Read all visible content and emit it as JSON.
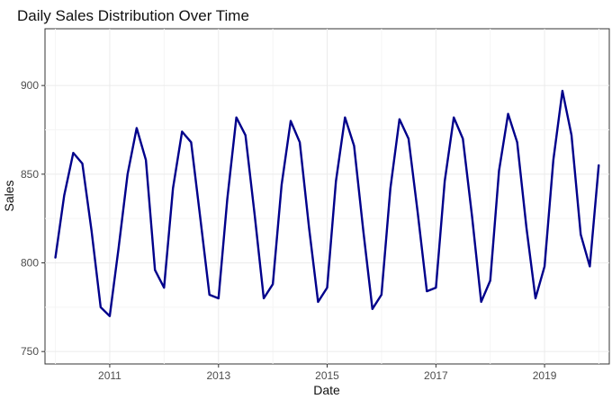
{
  "chart_data": {
    "type": "line",
    "title": "Daily Sales Distribution Over Time",
    "xlabel": "Date",
    "ylabel": "Sales",
    "x_ticks": [
      "2011",
      "2013",
      "2015",
      "2017",
      "2019"
    ],
    "y_ticks": [
      750,
      800,
      850,
      900
    ],
    "xlim": [
      "2009-10-23",
      "2020-03-11"
    ],
    "ylim": [
      743,
      932
    ],
    "grid": true,
    "color": "#00008b",
    "series": [
      {
        "x": [
          "2010-01-01",
          "2010-03-01",
          "2010-05-01",
          "2010-07-01",
          "2010-09-01",
          "2010-11-01",
          "2011-01-01",
          "2011-03-01",
          "2011-05-01",
          "2011-07-01",
          "2011-09-01",
          "2011-11-01",
          "2012-01-01",
          "2012-03-01",
          "2012-05-01",
          "2012-07-01",
          "2012-09-01",
          "2012-11-01",
          "2013-01-01",
          "2013-03-01",
          "2013-05-01",
          "2013-07-01",
          "2013-09-01",
          "2013-11-01",
          "2014-01-01",
          "2014-03-01",
          "2014-05-01",
          "2014-07-01",
          "2014-09-01",
          "2014-11-01",
          "2015-01-01",
          "2015-03-01",
          "2015-05-01",
          "2015-07-01",
          "2015-09-01",
          "2015-11-01",
          "2016-01-01",
          "2016-03-01",
          "2016-05-01",
          "2016-07-01",
          "2016-09-01",
          "2016-11-01",
          "2017-01-01",
          "2017-03-01",
          "2017-05-01",
          "2017-07-01",
          "2017-09-01",
          "2017-11-01",
          "2018-01-01",
          "2018-03-01",
          "2018-05-01",
          "2018-07-01",
          "2018-09-01",
          "2018-11-01",
          "2019-01-01",
          "2019-03-01",
          "2019-05-01",
          "2019-07-01",
          "2019-09-01",
          "2019-11-01",
          "2019-12-31"
        ],
        "values": [
          803,
          838,
          862,
          856,
          818,
          775,
          770,
          808,
          850,
          876,
          858,
          796,
          786,
          842,
          874,
          868,
          825,
          782,
          780,
          836,
          882,
          872,
          827,
          780,
          788,
          844,
          880,
          868,
          820,
          778,
          786,
          846,
          882,
          866,
          818,
          774,
          782,
          842,
          881,
          870,
          828,
          784,
          786,
          846,
          882,
          870,
          826,
          778,
          790,
          852,
          884,
          868,
          820,
          780,
          798,
          858,
          897,
          872,
          816,
          798,
          855
        ]
      }
    ]
  }
}
